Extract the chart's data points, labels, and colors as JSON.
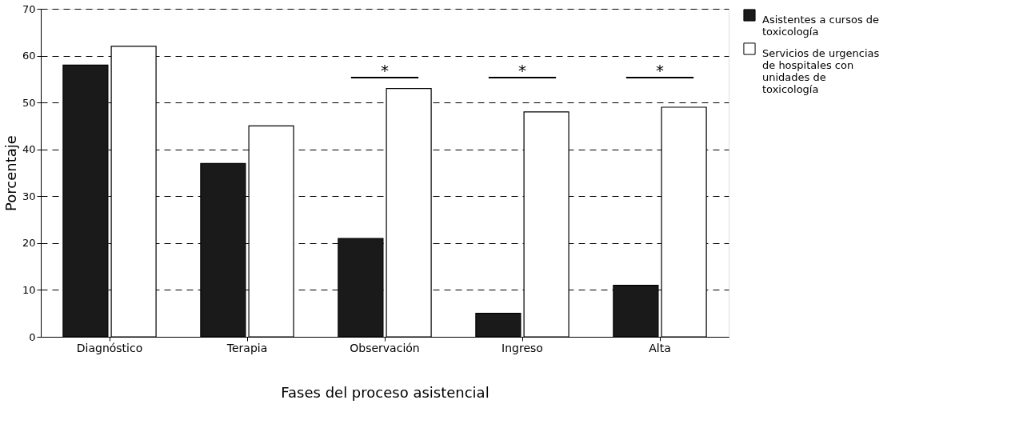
{
  "chart_data": {
    "type": "bar",
    "xlabel": "Fases del proceso asistencial",
    "ylabel": "Porcentaje",
    "categories": [
      "Diagnóstico",
      "Terapia",
      "Observación",
      "Ingreso",
      "Alta"
    ],
    "series": [
      {
        "name": "Asistentes a cursos de toxicología",
        "color": "#1a1a1a",
        "values": [
          58,
          37,
          21,
          5,
          11
        ]
      },
      {
        "name": "Servicios de urgencias de hospitales con unidades de toxicología",
        "color": "#ffffff",
        "values": [
          62,
          45,
          53,
          48,
          49
        ]
      }
    ],
    "ylim": [
      0,
      70
    ],
    "yticks": [
      0,
      10,
      20,
      30,
      40,
      50,
      60,
      70
    ],
    "grid": "y",
    "line_style": "dashed",
    "legend": "right",
    "annotations": [
      "*",
      "*",
      "*"
    ]
  }
}
